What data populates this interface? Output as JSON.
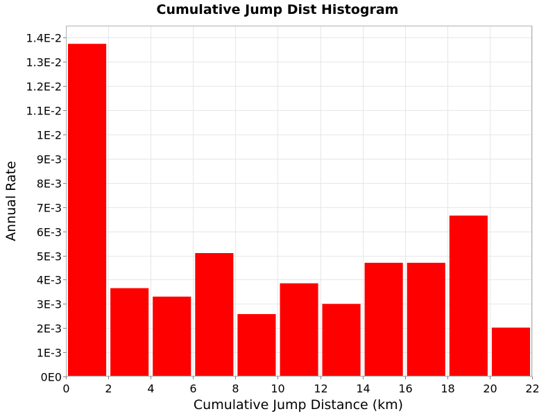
{
  "chart_data": {
    "type": "bar",
    "title": "Cumulative Jump Dist Histogram",
    "xlabel": "Cumulative Jump Distance (km)",
    "ylabel": "Annual Rate",
    "bins": [
      {
        "x0": 0,
        "x1": 2,
        "value": 0.01375
      },
      {
        "x0": 2,
        "x1": 4,
        "value": 0.00365
      },
      {
        "x0": 4,
        "x1": 6,
        "value": 0.0033
      },
      {
        "x0": 6,
        "x1": 8,
        "value": 0.0051
      },
      {
        "x0": 8,
        "x1": 10,
        "value": 0.00258
      },
      {
        "x0": 10,
        "x1": 12,
        "value": 0.00385
      },
      {
        "x0": 12,
        "x1": 14,
        "value": 0.003
      },
      {
        "x0": 14,
        "x1": 16,
        "value": 0.0047
      },
      {
        "x0": 16,
        "x1": 18,
        "value": 0.0047
      },
      {
        "x0": 18,
        "x1": 20,
        "value": 0.00665
      },
      {
        "x0": 20,
        "x1": 22,
        "value": 0.00202
      }
    ],
    "xlim": [
      0,
      22
    ],
    "ylim": [
      0,
      0.0145
    ],
    "x_ticks": [
      0,
      2,
      4,
      6,
      8,
      10,
      12,
      14,
      16,
      18,
      20,
      22
    ],
    "x_tick_labels": [
      "0",
      "2",
      "4",
      "6",
      "8",
      "10",
      "12",
      "14",
      "16",
      "18",
      "20",
      "22"
    ],
    "y_ticks": [
      0,
      0.001,
      0.002,
      0.003,
      0.004,
      0.005,
      0.006,
      0.007,
      0.008,
      0.009,
      0.01,
      0.011,
      0.012,
      0.013,
      0.014
    ],
    "y_tick_labels": [
      "0E0",
      "1E-3",
      "2E-3",
      "3E-3",
      "4E-3",
      "5E-3",
      "6E-3",
      "7E-3",
      "8E-3",
      "9E-3",
      "1E-2",
      "1.1E-2",
      "1.2E-2",
      "1.3E-2",
      "1.4E-2"
    ],
    "grid": true,
    "legend": "none",
    "bar_color": "#ff0000",
    "grid_color": "#e6e6e6",
    "frame_color": "#b0b0b0"
  }
}
